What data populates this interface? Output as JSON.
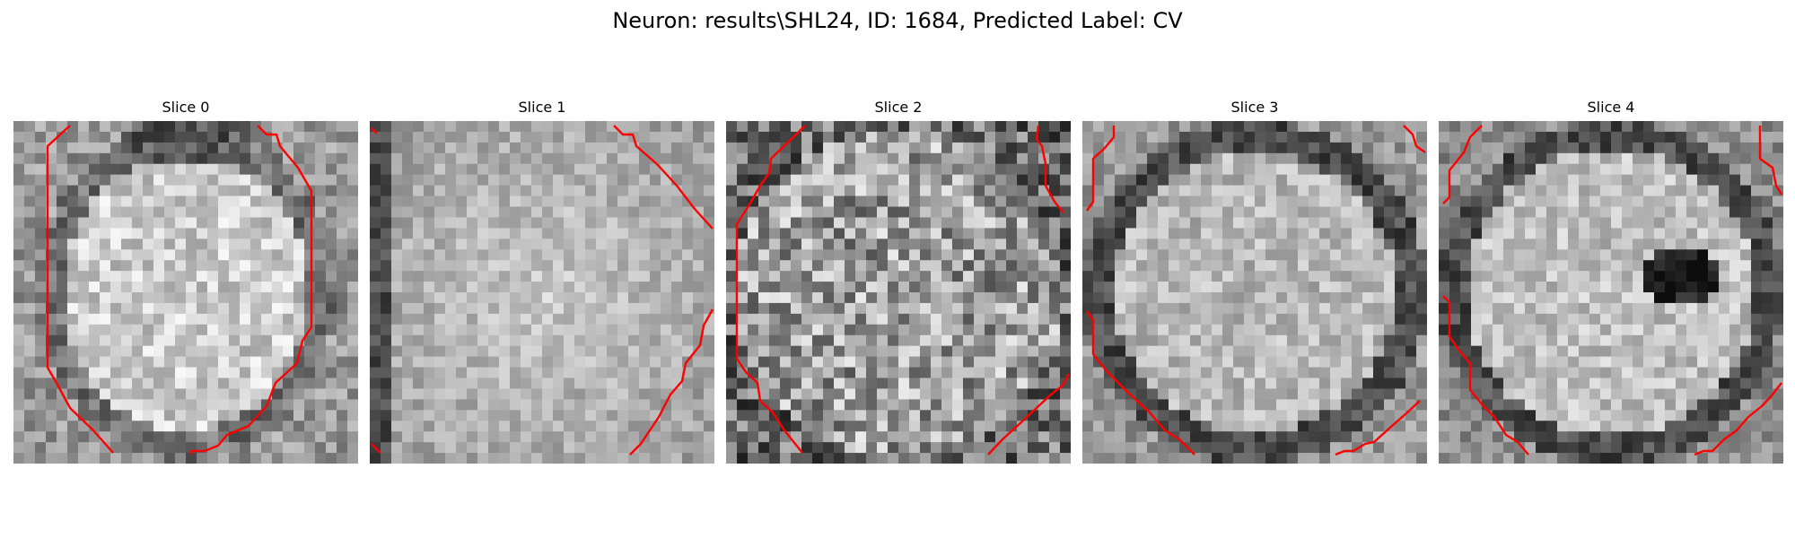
{
  "figure": {
    "title": "Neuron: results\\SHL24, ID: 1684, Predicted Label: CV"
  },
  "panels": [
    {
      "title": "Slice 0",
      "seed": 101,
      "profile": "blob",
      "contour_color": "#ff0000"
    },
    {
      "title": "Slice 1",
      "seed": 202,
      "profile": "bright",
      "contour_color": "#ff0000"
    },
    {
      "title": "Slice 2",
      "seed": 303,
      "profile": "noisy",
      "contour_color": "#ff0000"
    },
    {
      "title": "Slice 3",
      "seed": 404,
      "profile": "ring",
      "contour_color": "#ff0000"
    },
    {
      "title": "Slice 4",
      "seed": 505,
      "profile": "ring-dark",
      "contour_color": "#ff0000"
    }
  ]
}
